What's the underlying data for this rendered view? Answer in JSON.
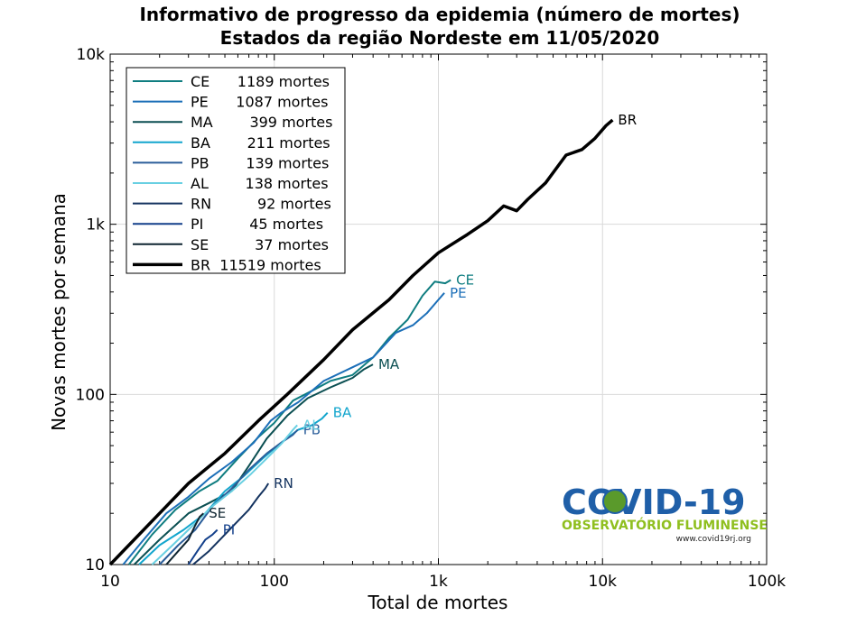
{
  "chart_data": {
    "type": "line",
    "title": "Informativo de progresso da epidemia (número de mortes)",
    "subtitle": "Estados da região Nordeste em 11/05/2020",
    "xlabel": "Total de mortes",
    "ylabel": "Novas mortes por semana",
    "x_scale": "log",
    "y_scale": "log",
    "xlim": [
      10,
      100000
    ],
    "ylim": [
      10,
      10000
    ],
    "x_ticks": [
      10,
      100,
      1000,
      10000,
      100000
    ],
    "x_tick_labels": [
      "10",
      "100",
      "1k",
      "10k",
      "100k"
    ],
    "y_ticks": [
      10,
      100,
      1000,
      10000
    ],
    "y_tick_labels": [
      "10",
      "100",
      "1k",
      "10k"
    ],
    "grid": true,
    "legend_position": "top-left",
    "series": [
      {
        "name": "CE",
        "label": "CE",
        "legend_text": "CE      1189 mortes",
        "color": "#0f7d80",
        "width": 2,
        "points": [
          [
            13,
            10
          ],
          [
            18,
            15
          ],
          [
            25,
            21
          ],
          [
            35,
            27
          ],
          [
            45,
            31
          ],
          [
            60,
            42
          ],
          [
            80,
            56
          ],
          [
            100,
            68
          ],
          [
            130,
            92
          ],
          [
            170,
            105
          ],
          [
            220,
            120
          ],
          [
            300,
            130
          ],
          [
            400,
            165
          ],
          [
            500,
            215
          ],
          [
            650,
            275
          ],
          [
            800,
            380
          ],
          [
            950,
            460
          ],
          [
            1100,
            450
          ],
          [
            1189,
            470
          ]
        ]
      },
      {
        "name": "PE",
        "label": "PE",
        "legend_text": "PE      1087 mortes",
        "color": "#1c6fb8",
        "width": 2,
        "points": [
          [
            12,
            10
          ],
          [
            16,
            14
          ],
          [
            22,
            20
          ],
          [
            30,
            25
          ],
          [
            40,
            32
          ],
          [
            55,
            40
          ],
          [
            75,
            52
          ],
          [
            95,
            70
          ],
          [
            110,
            78
          ],
          [
            140,
            90
          ],
          [
            200,
            120
          ],
          [
            280,
            140
          ],
          [
            400,
            165
          ],
          [
            550,
            230
          ],
          [
            700,
            255
          ],
          [
            850,
            300
          ],
          [
            1000,
            360
          ],
          [
            1087,
            395
          ]
        ]
      },
      {
        "name": "MA",
        "label": "MA",
        "legend_text": "MA        399 mortes",
        "color": "#0b4f52",
        "width": 2,
        "points": [
          [
            14,
            10
          ],
          [
            20,
            14
          ],
          [
            30,
            20
          ],
          [
            40,
            23
          ],
          [
            55,
            27
          ],
          [
            70,
            38
          ],
          [
            90,
            55
          ],
          [
            120,
            75
          ],
          [
            160,
            95
          ],
          [
            220,
            110
          ],
          [
            300,
            125
          ],
          [
            350,
            140
          ],
          [
            399,
            150
          ]
        ]
      },
      {
        "name": "BA",
        "label": "BA",
        "legend_text": "BA        211 mortes",
        "color": "#12a5cd",
        "width": 2,
        "points": [
          [
            15,
            10
          ],
          [
            20,
            13
          ],
          [
            28,
            16
          ],
          [
            38,
            20
          ],
          [
            50,
            27
          ],
          [
            65,
            33
          ],
          [
            85,
            42
          ],
          [
            110,
            52
          ],
          [
            140,
            62
          ],
          [
            170,
            66
          ],
          [
            195,
            72
          ],
          [
            211,
            78
          ]
        ]
      },
      {
        "name": "PB",
        "label": "PB",
        "legend_text": "PB        139 mortes",
        "color": "#2b5e9a",
        "width": 2,
        "points": [
          [
            20,
            10
          ],
          [
            26,
            13
          ],
          [
            33,
            16
          ],
          [
            42,
            22
          ],
          [
            55,
            28
          ],
          [
            70,
            36
          ],
          [
            90,
            45
          ],
          [
            110,
            52
          ],
          [
            130,
            58
          ],
          [
            139,
            62
          ]
        ]
      },
      {
        "name": "AL",
        "label": "AL",
        "legend_text": "AL        138 mortes",
        "color": "#69d0e2",
        "width": 2,
        "points": [
          [
            18,
            10
          ],
          [
            24,
            13
          ],
          [
            32,
            17
          ],
          [
            42,
            22
          ],
          [
            55,
            27
          ],
          [
            72,
            34
          ],
          [
            92,
            43
          ],
          [
            112,
            52
          ],
          [
            130,
            62
          ],
          [
            138,
            66
          ]
        ]
      },
      {
        "name": "RN",
        "label": "RN",
        "legend_text": "RN          92 mortes",
        "color": "#14335f",
        "width": 2,
        "points": [
          [
            32,
            10
          ],
          [
            40,
            12
          ],
          [
            50,
            15
          ],
          [
            60,
            18
          ],
          [
            70,
            21
          ],
          [
            80,
            25
          ],
          [
            88,
            28
          ],
          [
            92,
            30
          ]
        ]
      },
      {
        "name": "PI",
        "label": "PI",
        "legend_text": "PI          45 mortes",
        "color": "#123f8a",
        "width": 2,
        "points": [
          [
            30,
            10
          ],
          [
            34,
            12
          ],
          [
            38,
            14
          ],
          [
            42,
            15
          ],
          [
            45,
            16
          ]
        ]
      },
      {
        "name": "SE",
        "label": "SE",
        "legend_text": "SE          37 mortes",
        "color": "#0e2430",
        "width": 2,
        "points": [
          [
            22,
            10
          ],
          [
            26,
            12
          ],
          [
            30,
            14
          ],
          [
            33,
            17
          ],
          [
            35,
            19
          ],
          [
            37,
            20
          ]
        ]
      },
      {
        "name": "BR",
        "label": "BR",
        "legend_text": "BR  11519 mortes",
        "color": "#000000",
        "width": 3.5,
        "points": [
          [
            10,
            10
          ],
          [
            20,
            20
          ],
          [
            30,
            30
          ],
          [
            50,
            45
          ],
          [
            80,
            70
          ],
          [
            120,
            100
          ],
          [
            200,
            160
          ],
          [
            300,
            240
          ],
          [
            500,
            360
          ],
          [
            700,
            500
          ],
          [
            1000,
            680
          ],
          [
            1500,
            870
          ],
          [
            2000,
            1050
          ],
          [
            2500,
            1280
          ],
          [
            3000,
            1200
          ],
          [
            3500,
            1400
          ],
          [
            4500,
            1750
          ],
          [
            6000,
            2550
          ],
          [
            7500,
            2750
          ],
          [
            9000,
            3200
          ],
          [
            10500,
            3800
          ],
          [
            11519,
            4100
          ]
        ]
      }
    ]
  },
  "logo": {
    "main": "COVID-19",
    "sub": "OBSERVATÓRIO FLUMINENSE",
    "url": "www.covid19rj.org"
  }
}
